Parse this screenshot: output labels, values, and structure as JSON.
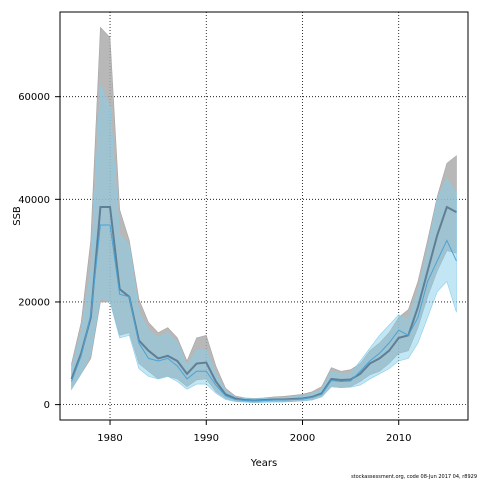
{
  "chart_data": {
    "type": "area",
    "title": "",
    "xlabel": "Years",
    "ylabel": "SSB",
    "xlim": [
      1974.8,
      2017.2
    ],
    "ylim": [
      -3000,
      76500
    ],
    "xticks": [
      1980,
      1990,
      2000,
      2010
    ],
    "yticks": [
      0,
      20000,
      40000,
      60000
    ],
    "grid": true,
    "grid_style": "dotted",
    "legend": "none",
    "caption": "stockassessment.org, code 08-Jun 2017 04, r8929",
    "x": [
      1976,
      1977,
      1978,
      1979,
      1980,
      1981,
      1982,
      1983,
      1984,
      1985,
      1986,
      1987,
      1988,
      1989,
      1990,
      1991,
      1992,
      1993,
      1994,
      1995,
      1996,
      1997,
      1998,
      1999,
      2000,
      2001,
      2002,
      2003,
      2004,
      2005,
      2006,
      2007,
      2008,
      2009,
      2010,
      2011,
      2012,
      2013,
      2014,
      2015,
      2016
    ],
    "series": [
      {
        "color": "#5f7f94",
        "band_color": "#a6a6a6",
        "values": [
          5000,
          10000,
          17000,
          38500,
          38500,
          22500,
          21000,
          12500,
          10500,
          9000,
          9500,
          8500,
          6000,
          8000,
          8200,
          4500,
          2000,
          1200,
          900,
          800,
          900,
          1000,
          1000,
          1100,
          1200,
          1500,
          2200,
          5000,
          4800,
          4900,
          6000,
          8000,
          9000,
          10500,
          13000,
          13500,
          19000,
          26000,
          33000,
          38500,
          37500
        ],
        "lower": [
          3000,
          6000,
          9000,
          20000,
          20000,
          13500,
          14000,
          8000,
          6500,
          5000,
          5500,
          5000,
          3500,
          4800,
          5000,
          2500,
          1200,
          700,
          500,
          400,
          500,
          550,
          550,
          650,
          700,
          900,
          1500,
          3500,
          3300,
          3500,
          4500,
          5800,
          6500,
          8000,
          10000,
          10500,
          15000,
          21000,
          26000,
          30000,
          29500
        ],
        "upper": [
          8000,
          16000,
          32000,
          73500,
          71500,
          38000,
          32000,
          20500,
          16000,
          14000,
          15000,
          13000,
          8500,
          13000,
          13500,
          7500,
          3200,
          1700,
          1300,
          1200,
          1300,
          1500,
          1600,
          1800,
          2000,
          2500,
          3500,
          7200,
          6500,
          6800,
          8000,
          10500,
          12000,
          14000,
          17000,
          18500,
          24000,
          32000,
          40500,
          47000,
          48500
        ]
      },
      {
        "color": "#4aa3d6",
        "band_color": "#87ceeb",
        "values": [
          4500,
          9500,
          17500,
          35000,
          35000,
          21500,
          21000,
          12000,
          9000,
          8500,
          9000,
          7500,
          5000,
          6500,
          6500,
          3800,
          1700,
          1000,
          800,
          700,
          800,
          900,
          900,
          1000,
          1100,
          1400,
          2000,
          4700,
          4500,
          4600,
          6500,
          8500,
          10000,
          12000,
          14500,
          13500,
          17000,
          24000,
          28000,
          32000,
          28000
        ],
        "lower": [
          3000,
          6000,
          10000,
          21000,
          20000,
          13000,
          13500,
          7000,
          5500,
          5000,
          5500,
          4500,
          3000,
          4000,
          4000,
          2200,
          1000,
          600,
          500,
          400,
          450,
          500,
          500,
          600,
          700,
          900,
          1500,
          3500,
          3300,
          3400,
          3800,
          5000,
          6000,
          7000,
          8500,
          9000,
          12000,
          17000,
          22000,
          24000,
          18000
        ],
        "upper": [
          7000,
          14000,
          26000,
          62000,
          58000,
          33000,
          31000,
          18000,
          14500,
          13000,
          14000,
          12000,
          7500,
          10500,
          10500,
          6000,
          2700,
          1500,
          1200,
          1100,
          1200,
          1400,
          1400,
          1500,
          1700,
          2100,
          2900,
          6500,
          6000,
          6000,
          8500,
          11000,
          13500,
          15500,
          17500,
          16500,
          22000,
          30000,
          40000,
          44000,
          41000
        ]
      }
    ]
  }
}
